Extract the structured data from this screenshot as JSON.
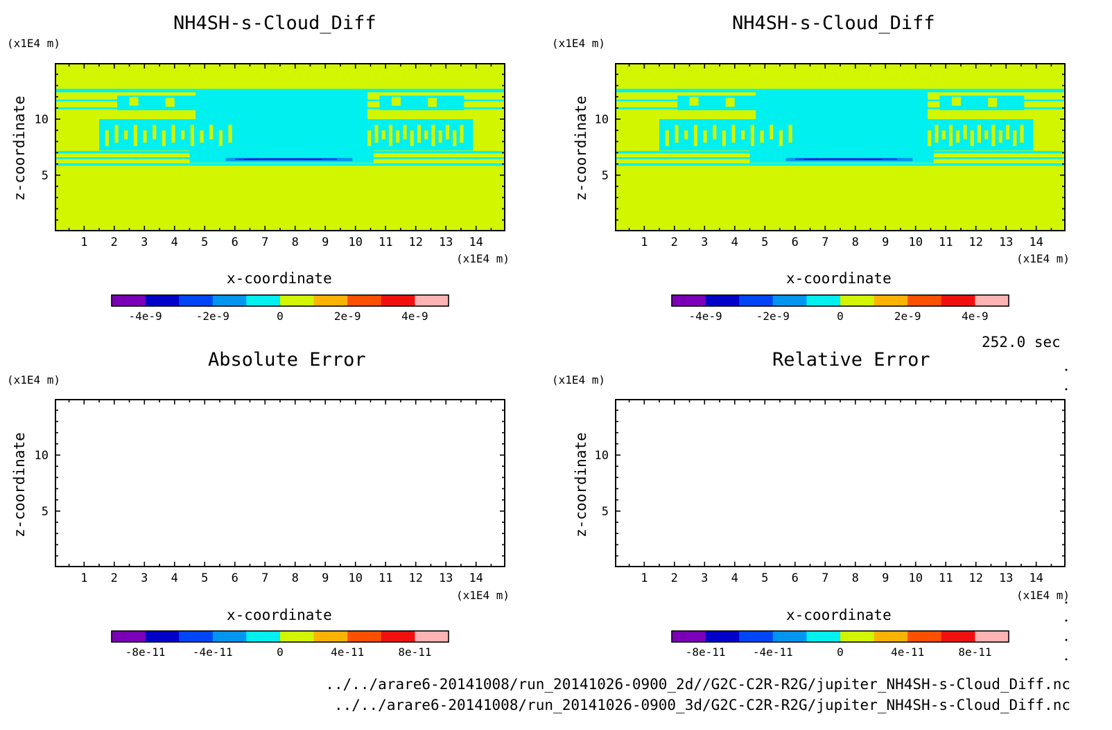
{
  "time_label": "252.0 sec",
  "files": [
    "../../arare6-20141008/run_20141026-0900_2d//G2C-C2R-R2G/jupiter_NH4SH-s-Cloud_Diff.nc",
    "../../arare6-20141008/run_20141026-0900_3d/G2C-C2R-R2G/jupiter_NH4SH-s-Cloud_Diff.nc"
  ],
  "colors": {
    "levels": [
      "#7a00b8",
      "#0000c8",
      "#0046f5",
      "#0096f0",
      "#00f0f0",
      "#d2f500",
      "#fab400",
      "#ff5000",
      "#f01010",
      "#ffb4b4"
    ],
    "background": "#d2f500",
    "cloud": "#00f0f0",
    "low1": "#0096f0",
    "low2": "#0046f5",
    "low3": "#0000c8",
    "low4": "#7a00b8"
  },
  "chart_data": [
    {
      "id": "p1",
      "type": "heatmap",
      "title": "NH4SH-s-Cloud_Diff",
      "xlabel": "x-coordinate",
      "ylabel": "z-coordinate",
      "xunit": "(x1E4 m)",
      "yunit": "(x1E4 m)",
      "xlim": [
        0.05,
        14.95
      ],
      "ylim": [
        0.05,
        14.95
      ],
      "xticks": [
        "1",
        "2",
        "3",
        "4",
        "5",
        "6",
        "7",
        "8",
        "9",
        "10",
        "11",
        "12",
        "13",
        "14"
      ],
      "yticks": [
        "5",
        "10"
      ],
      "filled": true,
      "colorbar": {
        "range": [
          -5e-09,
          5e-09
        ],
        "labels": [
          "-4e-9",
          "-2e-9",
          "0",
          "2e-9",
          "4e-9"
        ],
        "label_values": [
          -4e-09,
          -2e-09,
          0,
          2e-09,
          4e-09
        ]
      }
    },
    {
      "id": "p2",
      "type": "heatmap",
      "title": "NH4SH-s-Cloud_Diff",
      "xlabel": "x-coordinate",
      "ylabel": "z-coordinate",
      "xunit": "(x1E4 m)",
      "yunit": "(x1E4 m)",
      "xlim": [
        0.05,
        14.95
      ],
      "ylim": [
        0.05,
        14.95
      ],
      "xticks": [
        "1",
        "2",
        "3",
        "4",
        "5",
        "6",
        "7",
        "8",
        "9",
        "10",
        "11",
        "12",
        "13",
        "14"
      ],
      "yticks": [
        "5",
        "10"
      ],
      "filled": true,
      "colorbar": {
        "range": [
          -5e-09,
          5e-09
        ],
        "labels": [
          "-4e-9",
          "-2e-9",
          "0",
          "2e-9",
          "4e-9"
        ],
        "label_values": [
          -4e-09,
          -2e-09,
          0,
          2e-09,
          4e-09
        ]
      }
    },
    {
      "id": "p3",
      "type": "heatmap",
      "title": "Absolute Error",
      "xlabel": "x-coordinate",
      "ylabel": "z-coordinate",
      "xunit": "(x1E4 m)",
      "yunit": "(x1E4 m)",
      "xlim": [
        0.05,
        14.95
      ],
      "ylim": [
        0.05,
        14.95
      ],
      "xticks": [
        "1",
        "2",
        "3",
        "4",
        "5",
        "6",
        "7",
        "8",
        "9",
        "10",
        "11",
        "12",
        "13",
        "14"
      ],
      "yticks": [
        "5",
        "10"
      ],
      "filled": false,
      "colorbar": {
        "range": [
          -1e-10,
          1e-10
        ],
        "labels": [
          "-8e-11",
          "-4e-11",
          "0",
          "4e-11",
          "8e-11"
        ],
        "label_values": [
          -8e-11,
          -4e-11,
          0,
          4e-11,
          8e-11
        ]
      }
    },
    {
      "id": "p4",
      "type": "heatmap",
      "title": "Relative Error",
      "xlabel": "x-coordinate",
      "ylabel": "z-coordinate",
      "xunit": "(x1E4 m)",
      "yunit": "(x1E4 m)",
      "xlim": [
        0.05,
        14.95
      ],
      "ylim": [
        0.05,
        14.95
      ],
      "xticks": [
        "1",
        "2",
        "3",
        "4",
        "5",
        "6",
        "7",
        "8",
        "9",
        "10",
        "11",
        "12",
        "13",
        "14"
      ],
      "yticks": [
        "5",
        "10"
      ],
      "filled": false,
      "colorbar": {
        "range": [
          -1e-10,
          1e-10
        ],
        "labels": [
          "-8e-11",
          "-4e-11",
          "0",
          "4e-11",
          "8e-11"
        ],
        "label_values": [
          -8e-11,
          -4e-11,
          0,
          4e-11,
          8e-11
        ]
      }
    }
  ]
}
